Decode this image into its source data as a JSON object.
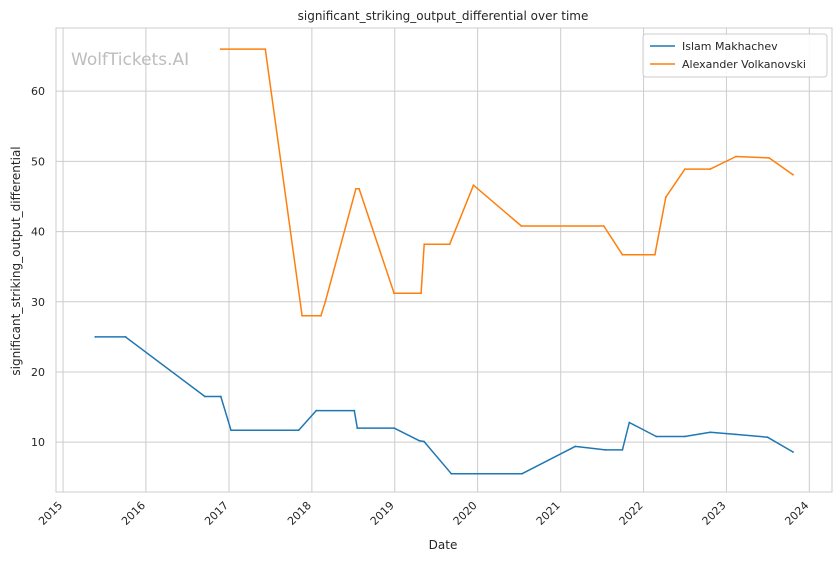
{
  "chart_data": {
    "type": "line",
    "title": "significant_striking_output_differential over time",
    "xlabel": "Date",
    "ylabel": "significant_striking_output_differential",
    "watermark": "WolfTickets.AI",
    "x_ticks": [
      "2015",
      "2016",
      "2017",
      "2018",
      "2019",
      "2020",
      "2021",
      "2022",
      "2023",
      "2024"
    ],
    "y_ticks": [
      10,
      20,
      30,
      40,
      50,
      60
    ],
    "xlim": [
      "2014-12-01",
      "2024-04-10"
    ],
    "ylim": [
      2.9,
      69.0
    ],
    "grid": true,
    "legend_position": "top-right",
    "series": [
      {
        "name": "Islam Makhachev",
        "color": "#1f77b4",
        "points": [
          [
            "2015-05-23",
            25.0
          ],
          [
            "2015-10-03",
            25.0
          ],
          [
            "2016-09-17",
            16.5
          ],
          [
            "2016-11-26",
            16.5
          ],
          [
            "2017-01-10",
            11.7
          ],
          [
            "2017-11-04",
            11.7
          ],
          [
            "2018-01-20",
            14.5
          ],
          [
            "2018-07-07",
            14.5
          ],
          [
            "2018-07-20",
            12.0
          ],
          [
            "2018-12-29",
            12.0
          ],
          [
            "2019-04-20",
            10.2
          ],
          [
            "2019-05-10",
            10.1
          ],
          [
            "2019-09-07",
            5.5
          ],
          [
            "2020-07-15",
            5.5
          ],
          [
            "2021-03-06",
            9.4
          ],
          [
            "2021-07-17",
            8.9
          ],
          [
            "2021-09-30",
            8.9
          ],
          [
            "2021-10-30",
            12.8
          ],
          [
            "2022-02-26",
            10.8
          ],
          [
            "2022-07-01",
            10.8
          ],
          [
            "2022-10-22",
            11.4
          ],
          [
            "2023-02-11",
            11.1
          ],
          [
            "2023-07-01",
            10.7
          ],
          [
            "2023-10-21",
            8.6
          ]
        ]
      },
      {
        "name": "Alexander Volkanovski",
        "color": "#ff7f0e",
        "points": [
          [
            "2016-11-26",
            66.0
          ],
          [
            "2017-06-10",
            66.0
          ],
          [
            "2017-11-19",
            28.0
          ],
          [
            "2018-02-10",
            28.0
          ],
          [
            "2018-03-01",
            30.0
          ],
          [
            "2018-07-14",
            46.1
          ],
          [
            "2018-07-28",
            46.1
          ],
          [
            "2018-12-29",
            31.2
          ],
          [
            "2019-04-27",
            31.2
          ],
          [
            "2019-05-11",
            38.2
          ],
          [
            "2019-08-31",
            38.2
          ],
          [
            "2019-12-14",
            46.6
          ],
          [
            "2020-07-12",
            40.8
          ],
          [
            "2021-07-10",
            40.8
          ],
          [
            "2021-09-30",
            36.7
          ],
          [
            "2022-02-20",
            36.7
          ],
          [
            "2022-04-09",
            44.9
          ],
          [
            "2022-07-02",
            48.9
          ],
          [
            "2022-10-22",
            48.9
          ],
          [
            "2023-02-12",
            50.7
          ],
          [
            "2023-07-08",
            50.5
          ],
          [
            "2023-10-21",
            48.1
          ]
        ]
      }
    ]
  }
}
